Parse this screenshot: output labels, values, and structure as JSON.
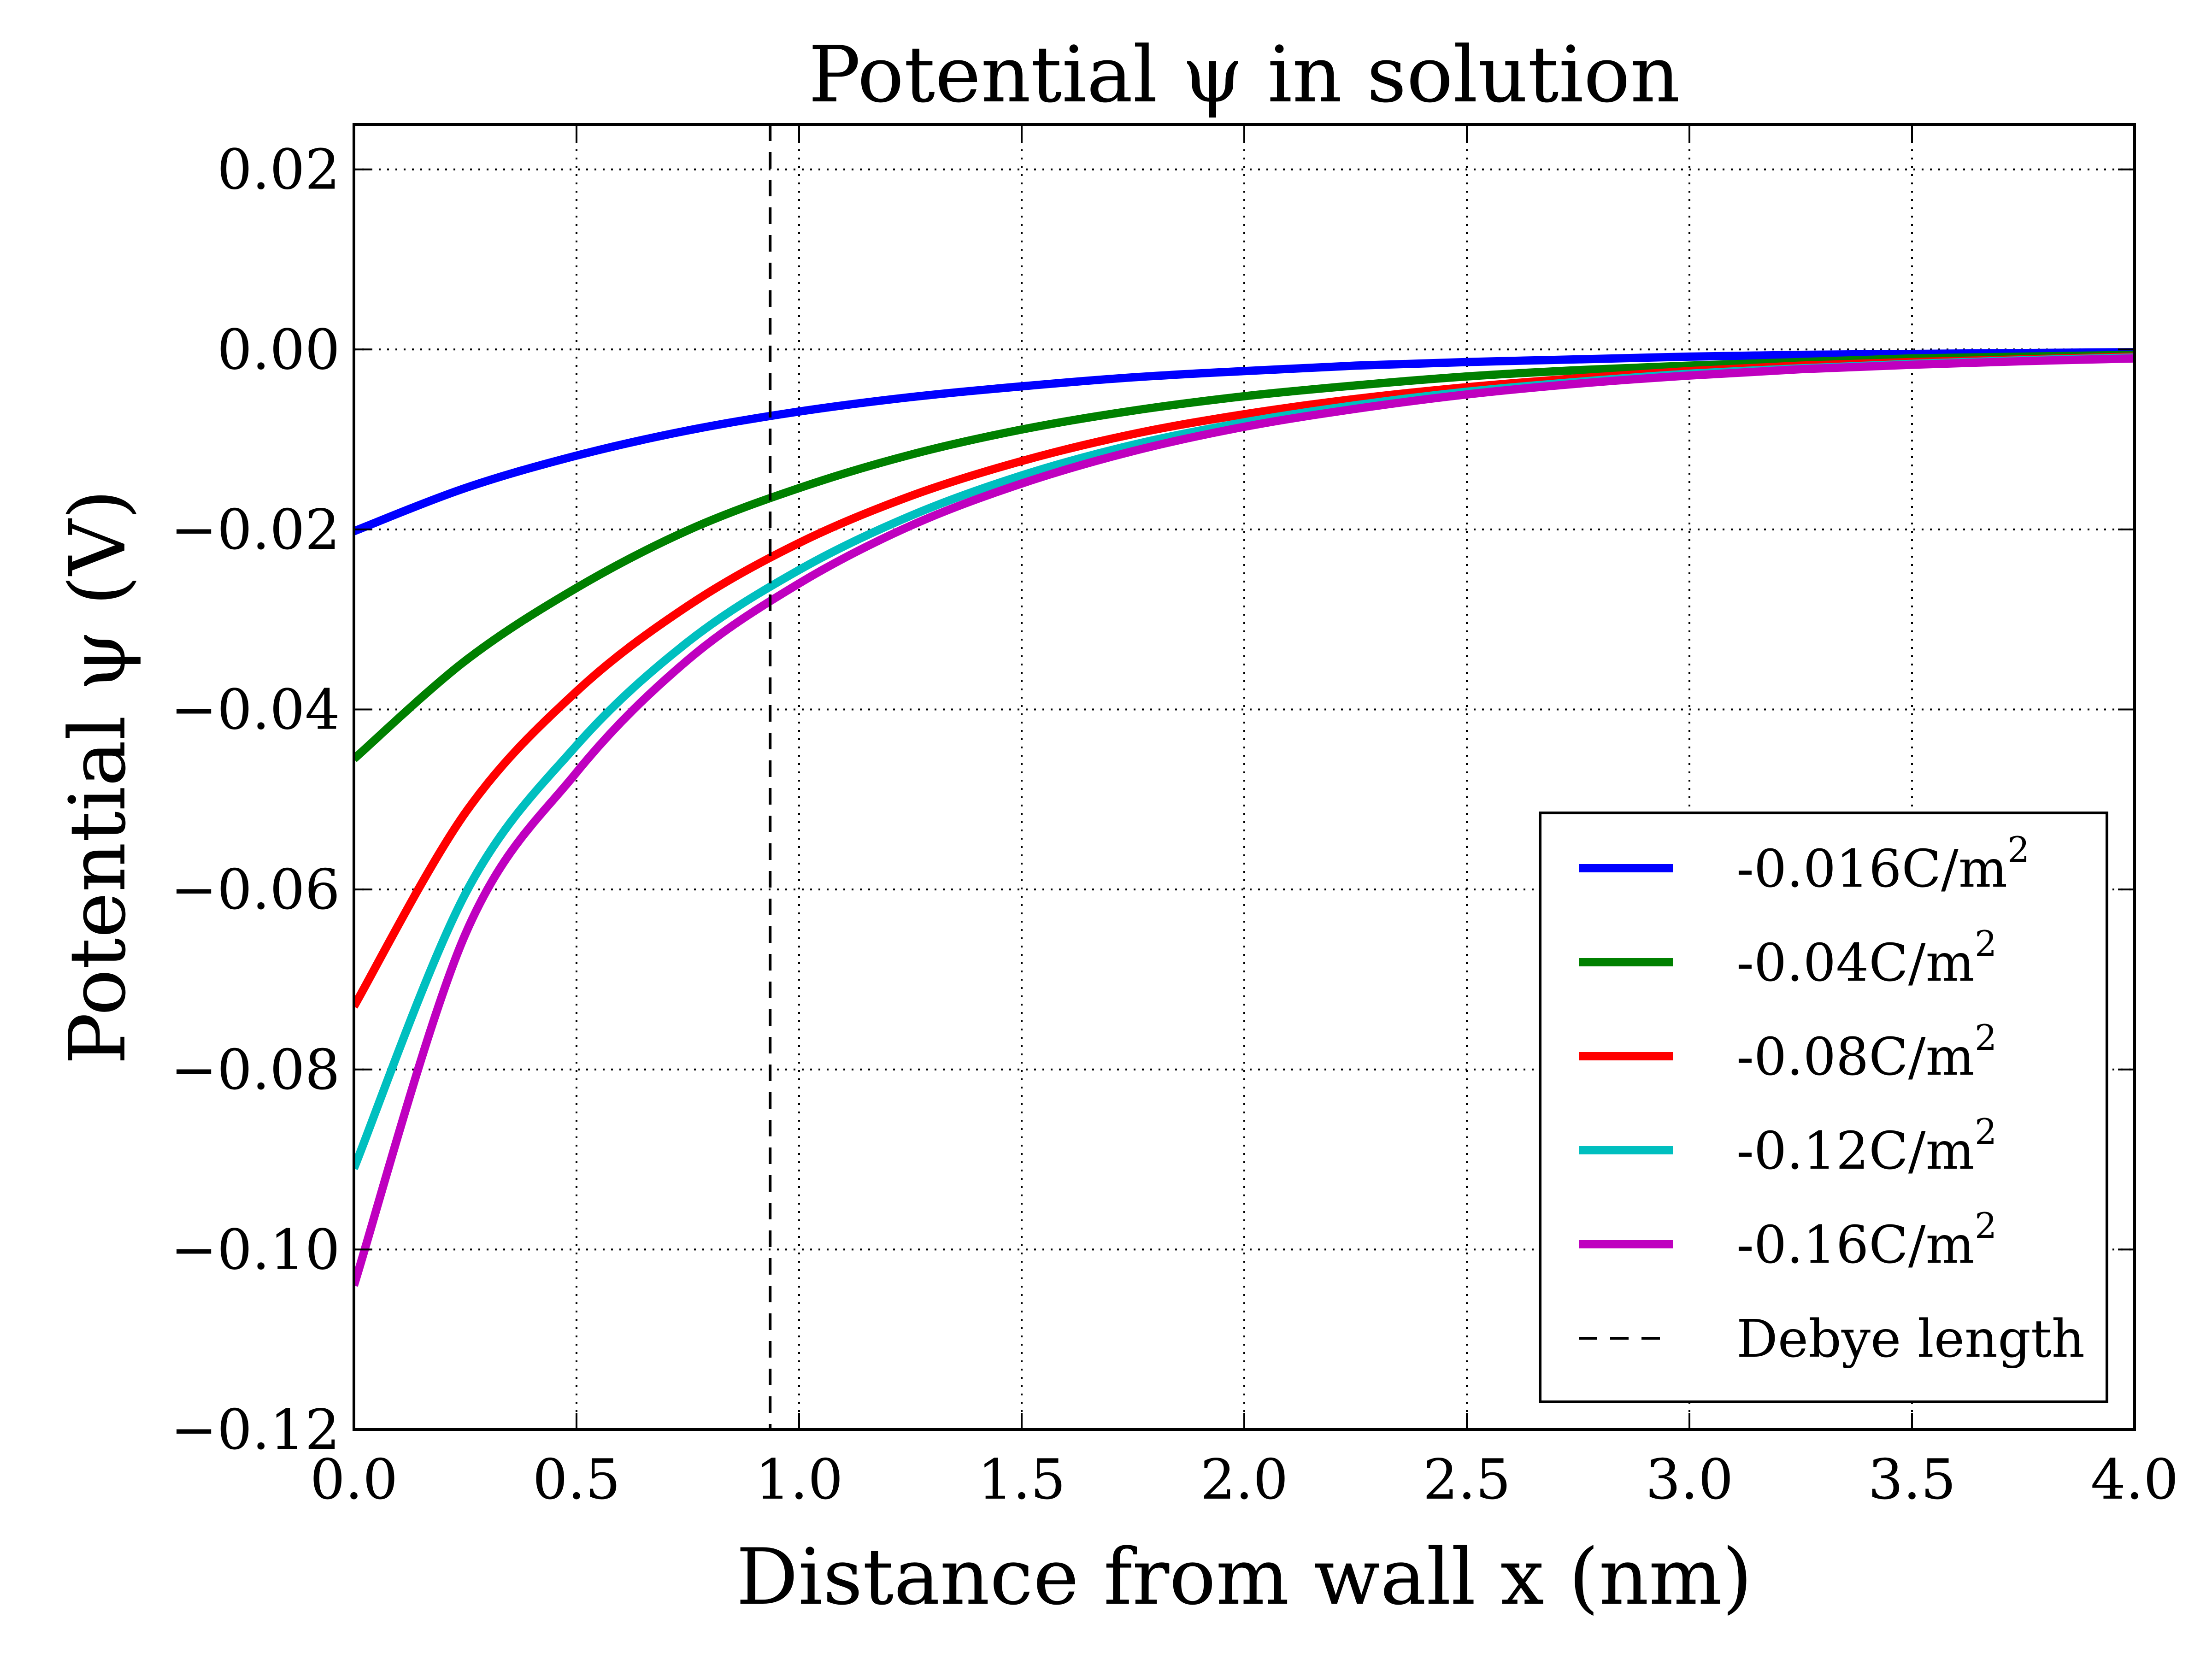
{
  "chart_data": {
    "type": "line",
    "title": "Potential ψ in solution",
    "xlabel": "Distance from wall x (nm)",
    "ylabel": "Potential ψ (V)",
    "xlim": [
      0.0,
      4.0
    ],
    "ylim": [
      -0.12,
      0.025
    ],
    "xticks": [
      "0.0",
      "0.5",
      "1.0",
      "1.5",
      "2.0",
      "2.5",
      "3.0",
      "3.5",
      "4.0"
    ],
    "yticks": [
      "0.02",
      "0.00",
      "−0.02",
      "−0.04",
      "−0.06",
      "−0.08",
      "−0.10",
      "−0.12"
    ],
    "ytick_values": [
      0.02,
      0.0,
      -0.02,
      -0.04,
      -0.06,
      -0.08,
      -0.1,
      -0.12
    ],
    "grid": true,
    "legend_position": "lower-right",
    "x": [
      0.0,
      0.25,
      0.5,
      0.75,
      1.0,
      1.25,
      1.5,
      1.75,
      2.0,
      2.25,
      2.5,
      2.75,
      3.0,
      3.25,
      3.5,
      3.75,
      4.0
    ],
    "series": [
      {
        "name": "-0.016C/m",
        "name_sup": "2",
        "color": "#0000ff",
        "values": [
          -0.0202,
          -0.0154,
          -0.0118,
          -0.009,
          -0.0069,
          -0.0053,
          -0.0041,
          -0.0031,
          -0.0024,
          -0.0018,
          -0.0014,
          -0.0011,
          -0.0008,
          -0.0006,
          -0.0005,
          -0.0004,
          -0.0003
        ]
      },
      {
        "name": "-0.04C/m",
        "name_sup": "2",
        "color": "#008000",
        "values": [
          -0.0455,
          -0.0346,
          -0.0265,
          -0.0201,
          -0.0154,
          -0.0117,
          -0.0089,
          -0.0068,
          -0.0052,
          -0.004,
          -0.003,
          -0.0023,
          -0.0018,
          -0.0014,
          -0.001,
          -0.0008,
          -0.0006
        ]
      },
      {
        "name": "-0.08C/m",
        "name_sup": "2",
        "color": "#ff0000",
        "values": [
          -0.073,
          -0.0515,
          -0.038,
          -0.0285,
          -0.0215,
          -0.0163,
          -0.0124,
          -0.0094,
          -0.0072,
          -0.0055,
          -0.0042,
          -0.0032,
          -0.0024,
          -0.0018,
          -0.0014,
          -0.0011,
          -0.0008
        ]
      },
      {
        "name": "-0.12C/m",
        "name_sup": "2",
        "color": "#00bfbf",
        "values": [
          -0.091,
          -0.0605,
          -0.044,
          -0.0325,
          -0.0245,
          -0.0185,
          -0.014,
          -0.0106,
          -0.0081,
          -0.0062,
          -0.0047,
          -0.0036,
          -0.0027,
          -0.0021,
          -0.0016,
          -0.0012,
          -0.0009
        ]
      },
      {
        "name": "-0.16C/m",
        "name_sup": "2",
        "color": "#bf00bf",
        "values": [
          -0.104,
          -0.065,
          -0.047,
          -0.0345,
          -0.026,
          -0.0196,
          -0.0149,
          -0.0113,
          -0.0086,
          -0.0066,
          -0.005,
          -0.0038,
          -0.0029,
          -0.0022,
          -0.0017,
          -0.0013,
          -0.001
        ]
      }
    ],
    "reference_line": {
      "name": "Debye length",
      "x": 0.935,
      "color": "#000000",
      "style": "dashed"
    }
  }
}
